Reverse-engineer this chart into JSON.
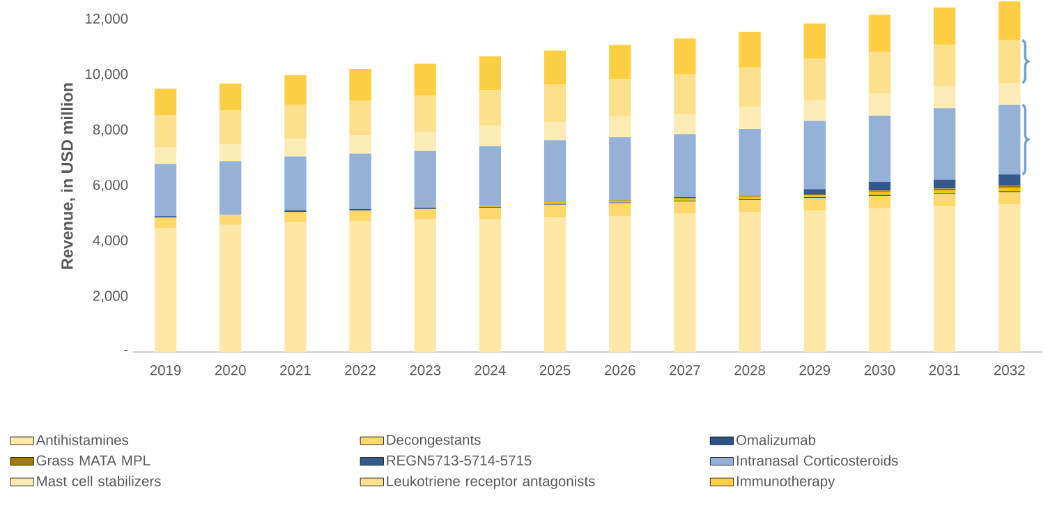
{
  "chart_data": {
    "type": "bar",
    "stacked": true,
    "ylabel": "Revenue, in USD million",
    "categories": [
      "2019",
      "2020",
      "2021",
      "2022",
      "2023",
      "2024",
      "2025",
      "2026",
      "2027",
      "2028",
      "2029",
      "2030",
      "2031",
      "2032"
    ],
    "ylim": [
      0,
      12700
    ],
    "yticks": [
      {
        "value": 0,
        "label": "-"
      },
      {
        "value": 2000,
        "label": "2,000"
      },
      {
        "value": 4000,
        "label": "4,000"
      },
      {
        "value": 6000,
        "label": "6,000"
      },
      {
        "value": 8000,
        "label": "8,000"
      },
      {
        "value": 10000,
        "label": "10,000"
      },
      {
        "value": 12000,
        "label": "12,000"
      }
    ],
    "legend": "bottom",
    "series": [
      {
        "name": "Antihistamines",
        "color": "#fde8a8",
        "values": [
          4460,
          4590,
          4670,
          4730,
          4790,
          4790,
          4850,
          4910,
          4990,
          5040,
          5110,
          5170,
          5250,
          5320
        ]
      },
      {
        "name": "Decongestants",
        "color": "#fdd96b",
        "values": [
          390,
          360,
          390,
          380,
          370,
          420,
          470,
          460,
          440,
          440,
          440,
          470,
          450,
          450
        ]
      },
      {
        "name": "Omalizumab",
        "color": "#2f5487",
        "values": [
          50,
          null,
          50,
          50,
          30,
          30,
          30,
          30,
          30,
          30,
          40,
          30,
          30,
          40
        ]
      },
      {
        "color": "#fcc000",
        "values": [
          0,
          0,
          0,
          0,
          20,
          40,
          60,
          60,
          80,
          90,
          70,
          110,
          110,
          110
        ]
      },
      {
        "name": "Grass MATA MPL",
        "color": "#a07c00",
        "values": [
          0,
          0,
          0,
          0,
          20,
          0,
          0,
          20,
          20,
          40,
          30,
          50,
          60,
          90
        ]
      },
      {
        "name": "REGN5713-5714-5715",
        "color": "#335a8a",
        "values": [
          0,
          0,
          0,
          0,
          0,
          0,
          0,
          0,
          30,
          0,
          190,
          310,
          320,
          400
        ]
      },
      {
        "name": "Intranasal Corticosteroids",
        "color": "#95b1d7",
        "values": [
          1890,
          1940,
          1950,
          2000,
          2020,
          2150,
          2230,
          2270,
          2270,
          2410,
          2460,
          2390,
          2580,
          2510
        ]
      },
      {
        "name": "Mast cell stabilizers",
        "color": "#fdebb5",
        "values": [
          590,
          600,
          640,
          660,
          680,
          740,
          650,
          740,
          720,
          790,
          740,
          800,
          780,
          790
        ]
      },
      {
        "name": "Leukotriene receptor antagonists",
        "color": "#fde08c",
        "values": [
          1170,
          1240,
          1230,
          1240,
          1320,
          1280,
          1370,
          1370,
          1440,
          1430,
          1500,
          1490,
          1500,
          1540
        ]
      },
      {
        "name": "Immunotherapy",
        "color": "#fecf44",
        "values": [
          950,
          960,
          1060,
          1150,
          1150,
          1220,
          1220,
          1220,
          1290,
          1280,
          1270,
          1350,
          1350,
          1400
        ]
      }
    ]
  }
}
